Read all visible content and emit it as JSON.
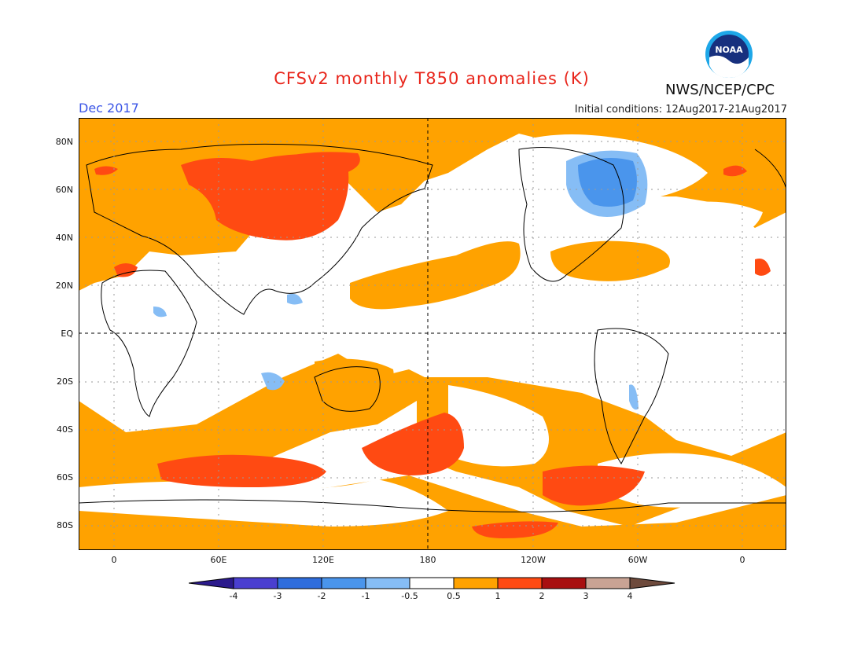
{
  "title": "CFSv2 monthly T850 anomalies (K)",
  "period": "Dec 2017",
  "initial_conditions": "Initial conditions: 12Aug2017-21Aug2017",
  "agency": "NWS/NCEP/CPC",
  "logo_text": "NOAA",
  "lat_labels": [
    "80N",
    "60N",
    "40N",
    "20N",
    "EQ",
    "20S",
    "40S",
    "60S",
    "80S"
  ],
  "lon_labels": [
    "0",
    "60E",
    "120E",
    "180",
    "120W",
    "60W",
    "0"
  ],
  "colorbar": {
    "labels": [
      "-4",
      "-3",
      "-2",
      "-1",
      "-0.5",
      "0.5",
      "1",
      "2",
      "3",
      "4"
    ],
    "colors": [
      "#2b1a8c",
      "#4a3fd0",
      "#2f6ddd",
      "#4a95ec",
      "#86bdf5",
      "#ffffff",
      "#ffa200",
      "#ff4a12",
      "#a80f10",
      "#c9a394",
      "#6e4a3c"
    ]
  }
}
